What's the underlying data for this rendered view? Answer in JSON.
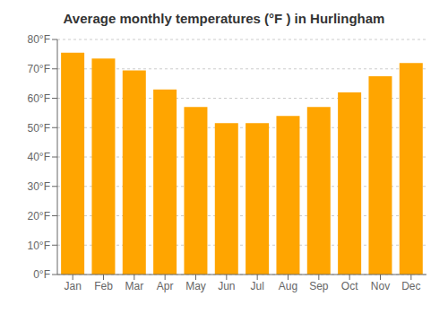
{
  "chart_data": {
    "type": "bar",
    "title": "Average monthly temperatures (°F ) in Hurlingham",
    "categories": [
      "Jan",
      "Feb",
      "Mar",
      "Apr",
      "May",
      "Jun",
      "Jul",
      "Aug",
      "Sep",
      "Oct",
      "Nov",
      "Dec"
    ],
    "values": [
      75.5,
      73.5,
      69.5,
      63,
      57,
      51.5,
      51.5,
      54,
      57,
      62,
      67.5,
      72
    ],
    "color": "#FFA500",
    "ylim": [
      0,
      80
    ],
    "yticks": [
      {
        "value": 0,
        "label": "0°F"
      },
      {
        "value": 10,
        "label": "10°F"
      },
      {
        "value": 20,
        "label": "20°F"
      },
      {
        "value": 30,
        "label": "30°F"
      },
      {
        "value": 40,
        "label": "40°F"
      },
      {
        "value": 50,
        "label": "50°F"
      },
      {
        "value": 60,
        "label": "60°F"
      },
      {
        "value": 70,
        "label": "70°F"
      },
      {
        "value": 80,
        "label": "80°F"
      }
    ],
    "grid": true
  }
}
